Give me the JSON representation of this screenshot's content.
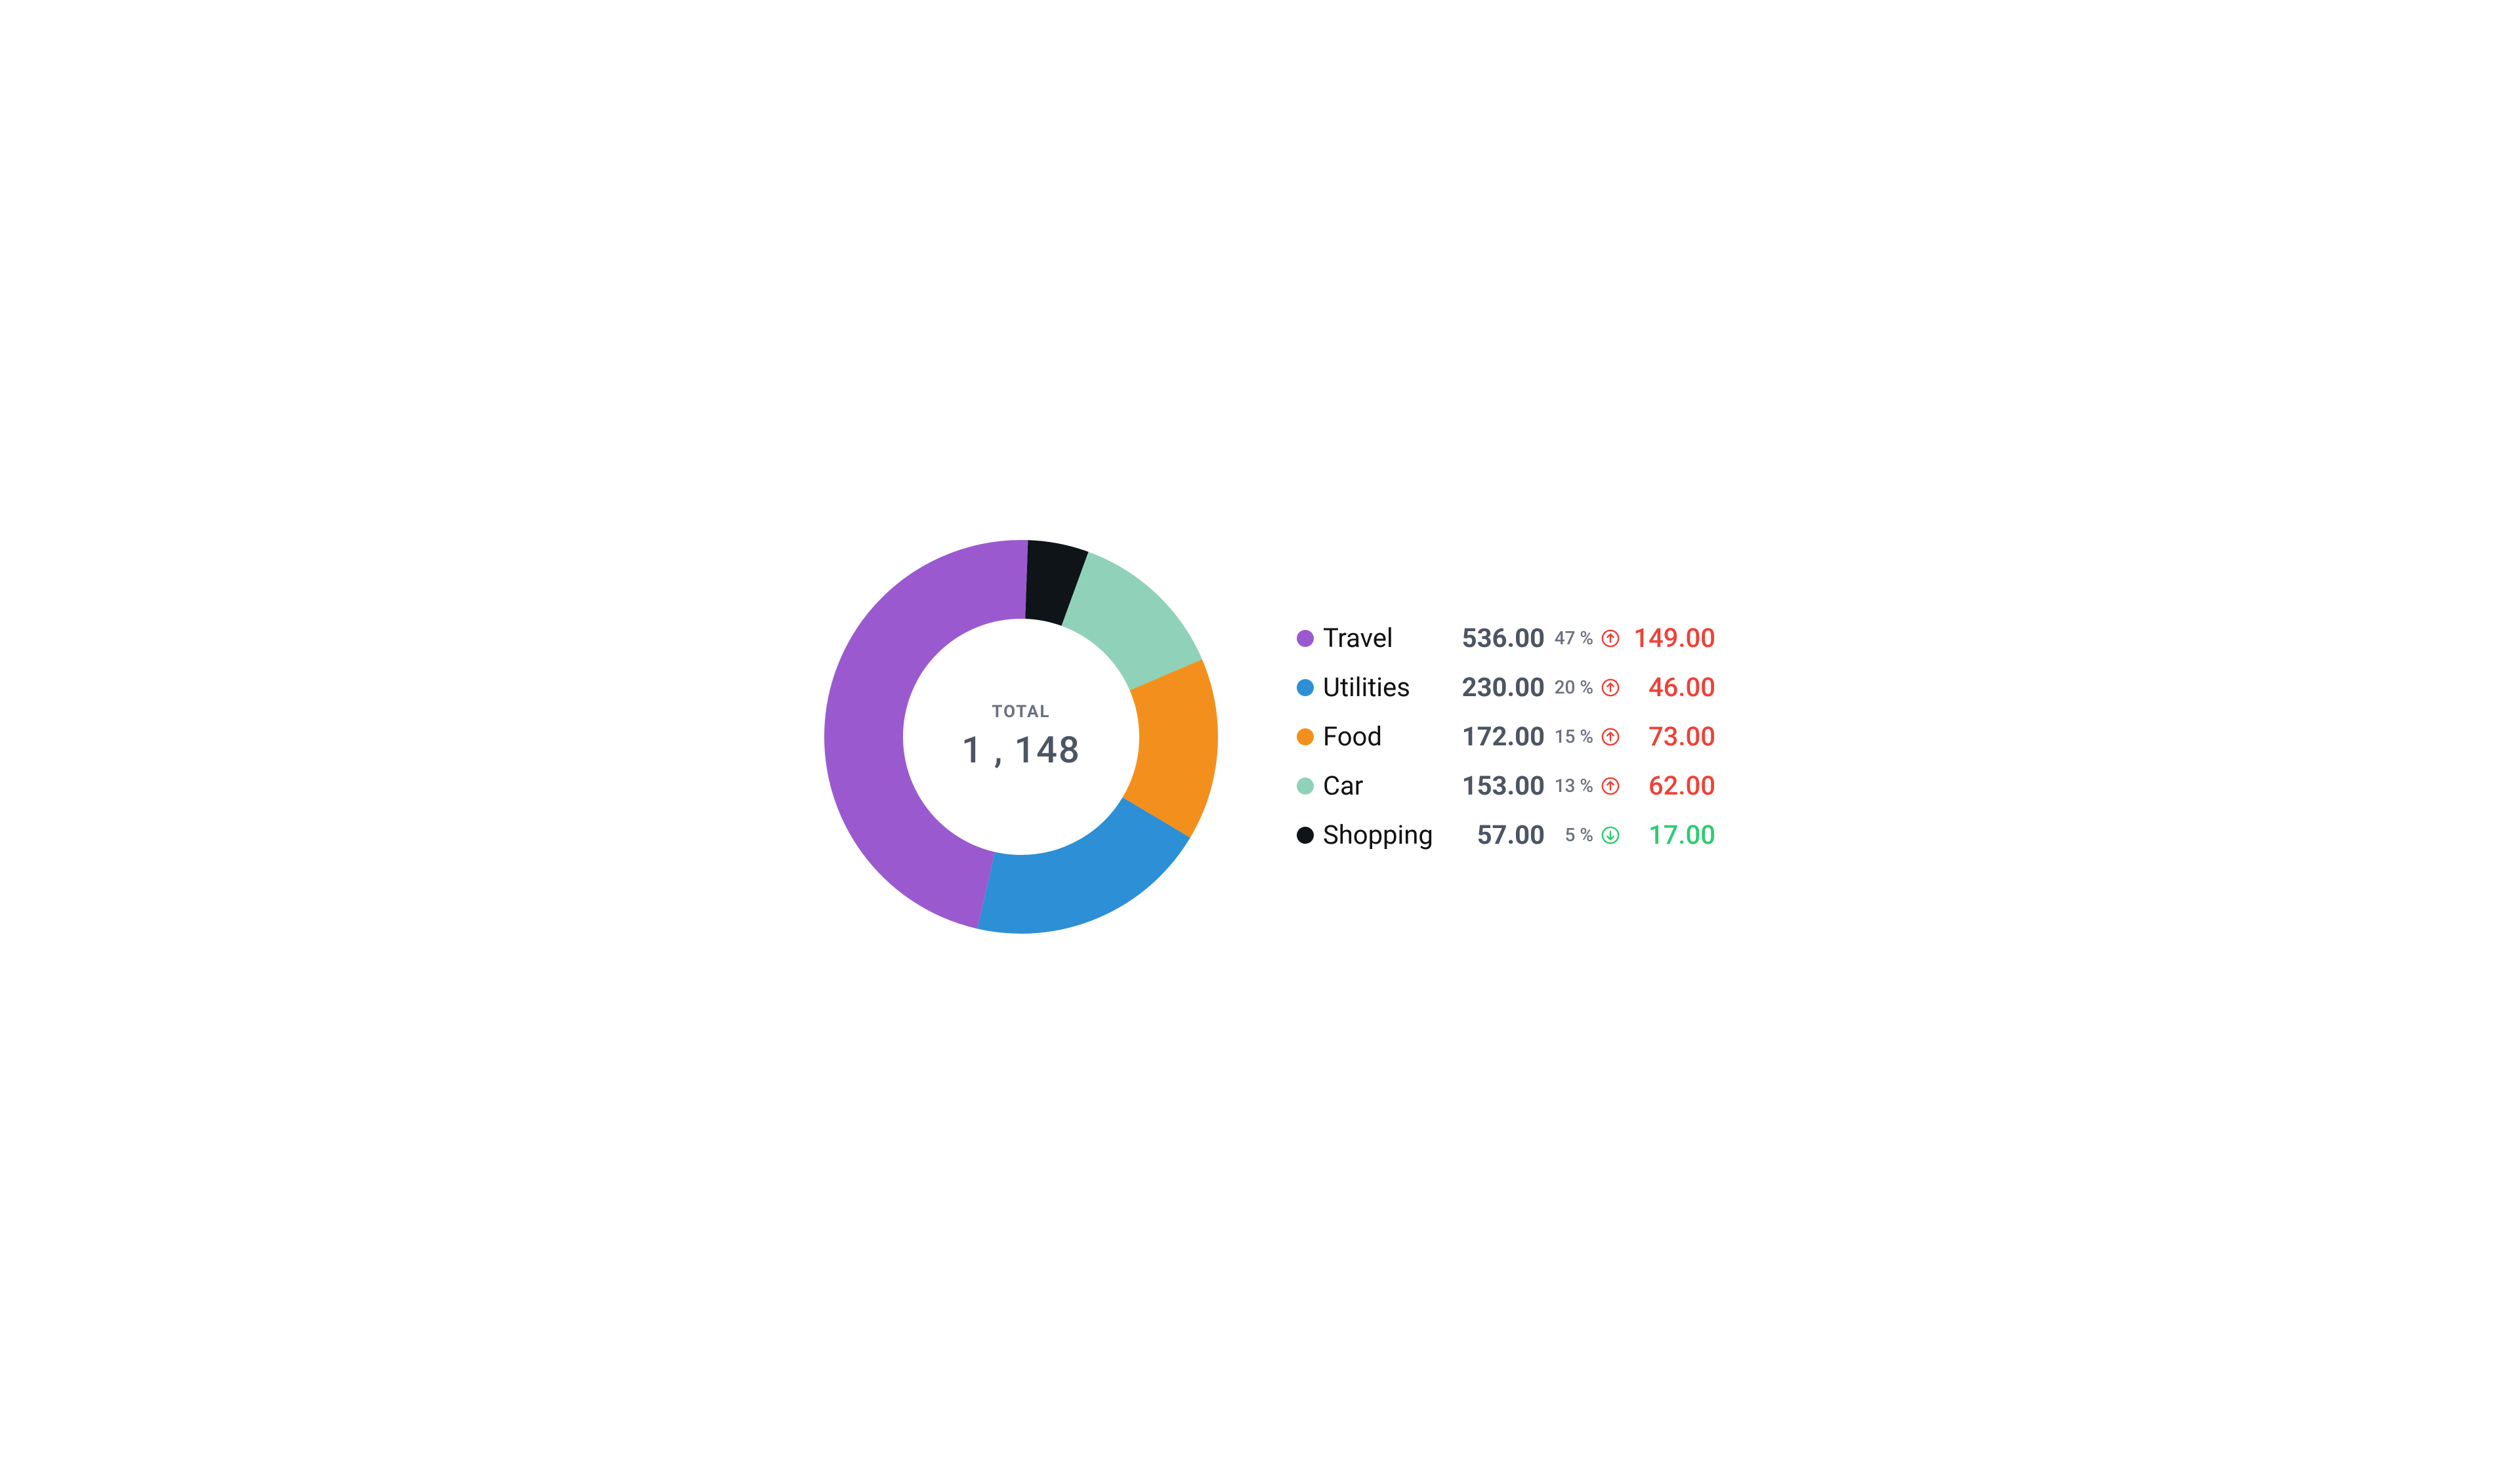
{
  "chart": {
    "type": "donut",
    "total_label": "TOTAL",
    "total_value": "1 , 148",
    "background_color": "#ffffff",
    "donut": {
      "outer_radius": 300,
      "stroke_width": 120,
      "start_angle_deg": 0,
      "gap_deg": 0
    },
    "colors": {
      "text_primary": "#111111",
      "text_muted": "#4b5563",
      "text_light": "#6b7280",
      "up": "#ef4136",
      "down": "#2ecc71"
    },
    "slices": [
      {
        "label": "Travel",
        "value": "536.00",
        "pct": 47,
        "pct_label": "47 %",
        "color": "#9b59d0",
        "delta_dir": "up",
        "delta": "149.00"
      },
      {
        "label": "Utilities",
        "value": "230.00",
        "pct": 20,
        "pct_label": "20 %",
        "color": "#2d8fd5",
        "delta_dir": "up",
        "delta": "46.00"
      },
      {
        "label": "Food",
        "value": "172.00",
        "pct": 15,
        "pct_label": "15 %",
        "color": "#f3901d",
        "delta_dir": "up",
        "delta": "73.00"
      },
      {
        "label": "Car",
        "value": "153.00",
        "pct": 13,
        "pct_label": "13 %",
        "color": "#8fd1b9",
        "delta_dir": "up",
        "delta": "62.00"
      },
      {
        "label": "Shopping",
        "value": "57.00",
        "pct": 5,
        "pct_label": "5 %",
        "color": "#0f1419",
        "delta_dir": "down",
        "delta": "17.00"
      }
    ],
    "draw_order": [
      "Shopping",
      "Car",
      "Food",
      "Utilities",
      "Travel"
    ],
    "draw_first_offset_deg": 0,
    "clockwise_from_top": true,
    "start_segment": "Shopping",
    "start_offset_after_top_deg": 2
  }
}
